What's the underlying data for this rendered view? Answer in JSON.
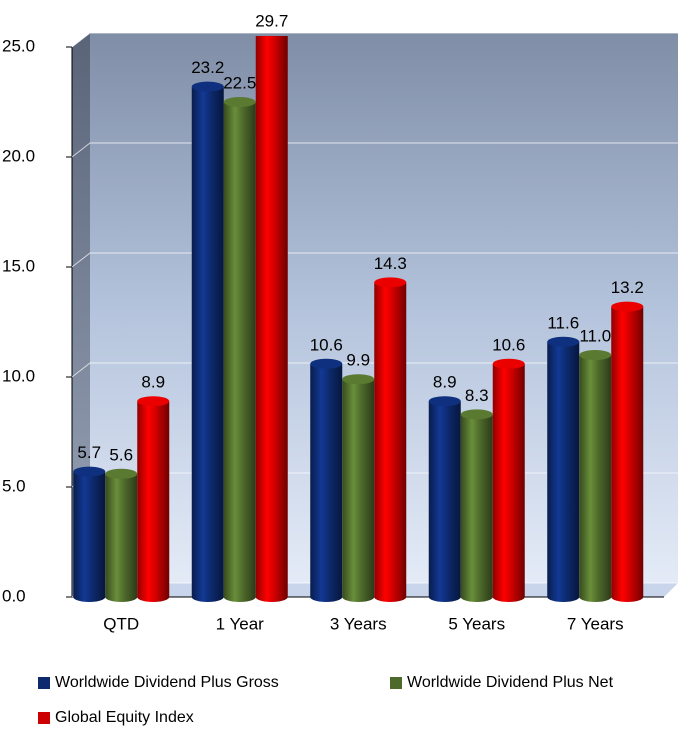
{
  "chart_data": {
    "type": "bar",
    "categories": [
      "QTD",
      "1 Year",
      "3 Years",
      "5 Years",
      "7 Years"
    ],
    "series": [
      {
        "name": "Worldwide Dividend Plus Gross",
        "color": "#0d2a6e",
        "values": [
          5.7,
          23.2,
          10.6,
          8.9,
          11.6
        ],
        "value_labels": [
          "5.7",
          "23.2",
          "10.6",
          "8.9",
          "11.6"
        ]
      },
      {
        "name": "Worldwide Dividend Plus Net",
        "color": "#4e6a2b",
        "values": [
          5.6,
          22.5,
          9.9,
          8.3,
          11.0
        ],
        "value_labels": [
          "5.6",
          "22.5",
          "9.9",
          "8.3",
          "11.0"
        ]
      },
      {
        "name": "Global Equity Index",
        "color": "#cc0000",
        "values": [
          8.9,
          29.7,
          14.3,
          10.6,
          13.2
        ],
        "value_labels": [
          "8.9",
          "29.7",
          "14.3",
          "10.6",
          "13.2"
        ]
      }
    ],
    "ylim": [
      0,
      25
    ],
    "yticks": [
      {
        "value": 0,
        "label": "0.0"
      },
      {
        "value": 5,
        "label": "5.0"
      },
      {
        "value": 10,
        "label": "10.0"
      },
      {
        "value": 15,
        "label": "15.0"
      },
      {
        "value": 20,
        "label": "20.0"
      },
      {
        "value": 25,
        "label": "25.0"
      }
    ],
    "grid": true,
    "legend": "bottom"
  }
}
